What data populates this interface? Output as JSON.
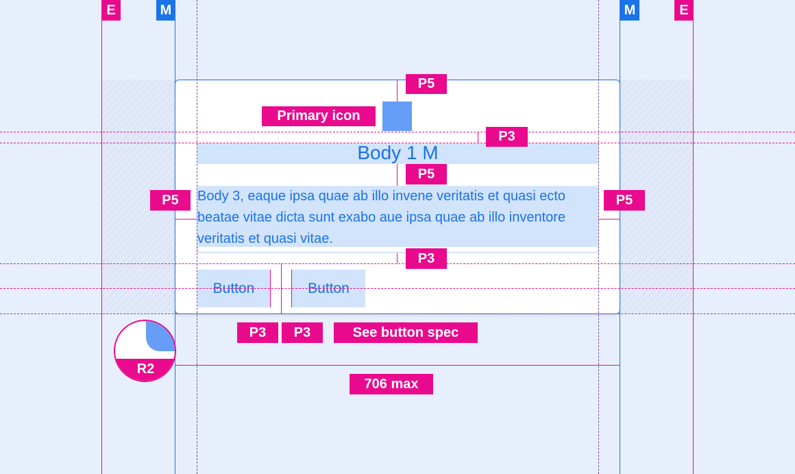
{
  "markers": {
    "edge": "E",
    "margin": "M"
  },
  "labels": {
    "primary_icon": "Primary icon",
    "p5": "P5",
    "p3": "P3",
    "see_button_spec": "See button spec",
    "radius": "R2",
    "max_width": "706 max"
  },
  "card": {
    "title": "Body 1 M",
    "body": "Body 3, eaque ipsa quae ab illo invene veritatis et quasi ecto beatae vitae dicta sunt exabo aue ipsa quae ab illo inventore veritatis et quasi vitae.",
    "buttons": [
      "Button",
      "Button"
    ]
  },
  "colors": {
    "annotation": "#ea0a8e",
    "accent": "#1a73e8",
    "fill": "#d2e3fc",
    "icon": "#669df6",
    "background": "#e8effc"
  }
}
